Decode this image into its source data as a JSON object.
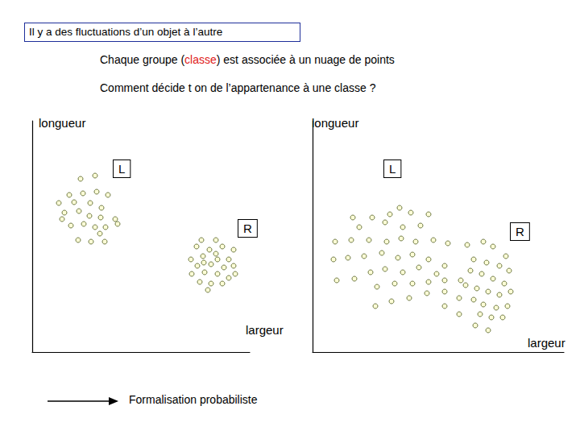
{
  "header": {
    "title": "Il y a des fluctuations d’un objet à l’autre"
  },
  "text_lines": [
    [
      {
        "text": "Chaque groupe ("
      },
      {
        "text": "classe",
        "color": "#e02020"
      },
      {
        "text": ") est associée à un nuage de points"
      }
    ],
    [
      {
        "text": "Comment décide t on de l’appartenance à une classe ?"
      }
    ]
  ],
  "footer": {
    "arrow_label": "Formalisation probabiliste"
  },
  "chart_data": [
    {
      "type": "scatter",
      "x_label": "largeur",
      "y_label": "longueur",
      "xlim": [
        0,
        270
      ],
      "ylim": [
        0,
        287
      ],
      "tick_labels": false,
      "marker": "circle",
      "series": [
        {
          "name": "L",
          "color": "#ffffcc",
          "values": [
            [
              60,
              215
            ],
            [
              78,
              219
            ],
            [
              46,
              195
            ],
            [
              63,
              197
            ],
            [
              80,
              199
            ],
            [
              94,
              195
            ],
            [
              33,
              185
            ],
            [
              52,
              186
            ],
            [
              72,
              185
            ],
            [
              86,
              179
            ],
            [
              40,
              173
            ],
            [
              58,
              175
            ],
            [
              71,
              169
            ],
            [
              85,
              167
            ],
            [
              103,
              165
            ],
            [
              37,
              165
            ],
            [
              48,
              157
            ],
            [
              64,
              159
            ],
            [
              78,
              155
            ],
            [
              91,
              155
            ],
            [
              106,
              159
            ],
            [
              57,
              139
            ],
            [
              73,
              137
            ],
            [
              90,
              137
            ],
            [
              84,
              147
            ]
          ]
        },
        {
          "name": "R",
          "color": "#ffffcc",
          "values": [
            [
              210,
              139
            ],
            [
              228,
              139
            ],
            [
              204,
              131
            ],
            [
              220,
              127
            ],
            [
              236,
              131
            ],
            [
              250,
              127
            ],
            [
              197,
              115
            ],
            [
              212,
              119
            ],
            [
              228,
              122
            ],
            [
              244,
              115
            ],
            [
              205,
              107
            ],
            [
              222,
              109
            ],
            [
              238,
              105
            ],
            [
              250,
              107
            ],
            [
              198,
              97
            ],
            [
              214,
              99
            ],
            [
              230,
              97
            ],
            [
              244,
              92
            ],
            [
              208,
              87
            ],
            [
              222,
              85
            ],
            [
              236,
              85
            ],
            [
              218,
              77
            ],
            [
              230,
              115
            ],
            [
              213,
              111
            ],
            [
              252,
              97
            ]
          ]
        }
      ]
    },
    {
      "type": "scatter",
      "x_label": "largeur",
      "y_label": "longueur",
      "xlim": [
        0,
        312
      ],
      "ylim": [
        0,
        287
      ],
      "tick_labels": false,
      "marker": "circle",
      "series": [
        {
          "name": "L",
          "color": "#ffffcc",
          "values": [
            [
              50,
              167
            ],
            [
              74,
              167
            ],
            [
              96,
              171
            ],
            [
              122,
              173
            ],
            [
              144,
              171
            ],
            [
              108,
              179
            ],
            [
              90,
              161
            ],
            [
              112,
              155
            ],
            [
              134,
              157
            ],
            [
              58,
              155
            ],
            [
              28,
              137
            ],
            [
              48,
              139
            ],
            [
              70,
              139
            ],
            [
              92,
              137
            ],
            [
              110,
              141
            ],
            [
              128,
              137
            ],
            [
              150,
              139
            ],
            [
              168,
              135
            ],
            [
              26,
              115
            ],
            [
              44,
              117
            ],
            [
              64,
              119
            ],
            [
              86,
              123
            ],
            [
              106,
              117
            ],
            [
              124,
              121
            ],
            [
              144,
              115
            ],
            [
              164,
              107
            ],
            [
              52,
              91
            ],
            [
              72,
              99
            ],
            [
              90,
              103
            ],
            [
              112,
              99
            ],
            [
              132,
              105
            ],
            [
              154,
              97
            ],
            [
              30,
              89
            ],
            [
              80,
              81
            ],
            [
              102,
              85
            ],
            [
              124,
              85
            ],
            [
              144,
              87
            ],
            [
              164,
              89
            ],
            [
              78,
              57
            ],
            [
              98,
              63
            ],
            [
              120,
              67
            ],
            [
              142,
              73
            ],
            [
              164,
              75
            ],
            [
              184,
              89
            ],
            [
              182,
              67
            ]
          ]
        },
        {
          "name": "R",
          "color": "#ffffcc",
          "values": [
            [
              212,
              137
            ],
            [
              224,
              131
            ],
            [
              240,
              119
            ],
            [
              200,
              115
            ],
            [
              216,
              111
            ],
            [
              232,
              107
            ],
            [
              244,
              101
            ],
            [
              196,
              101
            ],
            [
              210,
              97
            ],
            [
              224,
              91
            ],
            [
              238,
              85
            ],
            [
              190,
              83
            ],
            [
              204,
              79
            ],
            [
              218,
              75
            ],
            [
              232,
              71
            ],
            [
              246,
              75
            ],
            [
              200,
              65
            ],
            [
              212,
              59
            ],
            [
              228,
              55
            ],
            [
              242,
              57
            ],
            [
              208,
              47
            ],
            [
              222,
              43
            ],
            [
              236,
              43
            ],
            [
              202,
              33
            ],
            [
              218,
              27
            ],
            [
              182,
              47
            ],
            [
              164,
              57
            ],
            [
              192,
              133
            ]
          ]
        }
      ]
    }
  ]
}
